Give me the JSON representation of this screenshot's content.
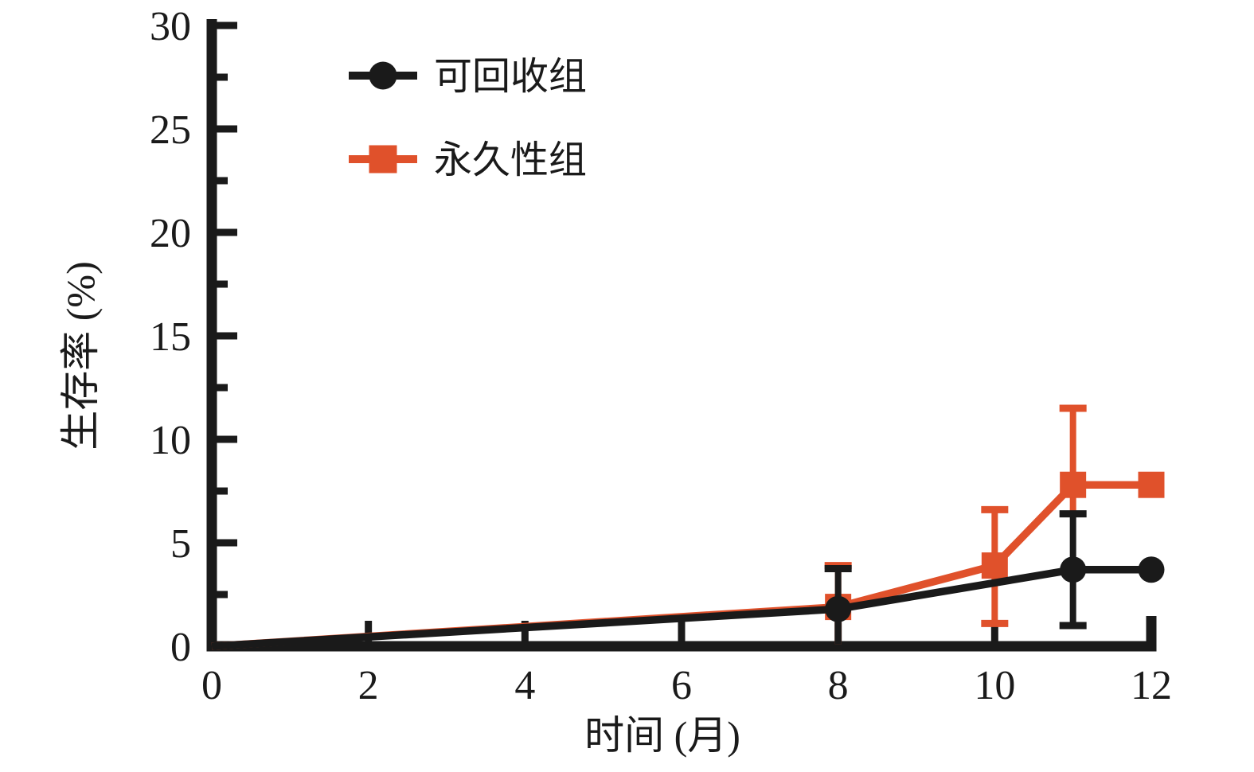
{
  "figure": {
    "background": "#ffffff",
    "axis_color": "#1a1a1a"
  },
  "chart_data": {
    "type": "line",
    "title": "",
    "xlabel": "时间 (月)",
    "ylabel": "生存率 (%)",
    "xlim": [
      0,
      12
    ],
    "ylim": [
      0,
      30
    ],
    "x_ticks": [
      0,
      2,
      4,
      6,
      8,
      10,
      12
    ],
    "y_ticks": [
      0,
      5,
      10,
      15,
      20,
      25,
      30
    ],
    "y_minor_ticks": [
      2.5,
      7.5,
      12.5,
      17.5,
      22.5,
      27.5
    ],
    "grid": false,
    "legend_position": "top-left",
    "series": [
      {
        "name": "可回收组",
        "color": "#1a1a1a",
        "marker": "circle",
        "points": [
          {
            "x": 0,
            "y": 0,
            "marker": false
          },
          {
            "x": 8,
            "y": 1.8,
            "marker": true
          },
          {
            "x": 11,
            "y": 3.7,
            "marker": true
          },
          {
            "x": 12,
            "y": 3.7,
            "marker": true
          }
        ],
        "error_bars": [
          {
            "x": 8,
            "low": 0.1,
            "high": 3.75,
            "cap_low": false,
            "cap_high": true
          },
          {
            "x": 11,
            "low": 1.0,
            "high": 6.4,
            "cap_low": true,
            "cap_high": true
          }
        ]
      },
      {
        "name": "永久性组",
        "color": "#e0512b",
        "marker": "square",
        "points": [
          {
            "x": 0,
            "y": 0,
            "marker": false
          },
          {
            "x": 8,
            "y": 1.9,
            "marker": true
          },
          {
            "x": 10,
            "y": 3.9,
            "marker": true
          },
          {
            "x": 11,
            "y": 7.8,
            "marker": true
          },
          {
            "x": 12,
            "y": 7.8,
            "marker": true
          }
        ],
        "error_bars": [
          {
            "x": 8,
            "low": 0.1,
            "high": 3.9,
            "cap_low": false,
            "cap_high": true
          },
          {
            "x": 10,
            "low": 1.1,
            "high": 6.6,
            "cap_low": true,
            "cap_high": true
          },
          {
            "x": 11,
            "low": 6.3,
            "high": 11.5,
            "cap_low": false,
            "cap_high": true
          }
        ]
      }
    ]
  }
}
